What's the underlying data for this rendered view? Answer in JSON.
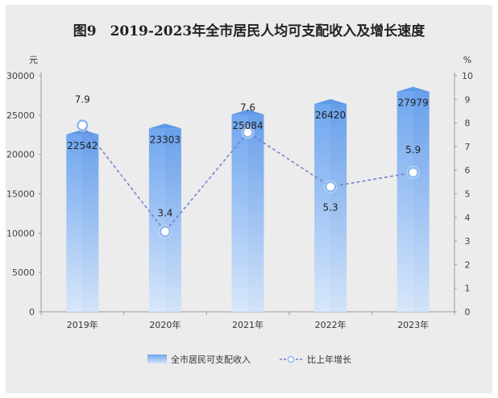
{
  "chart_data": {
    "type": "bar",
    "title": "图9　2019-2023年全市居民人均可支配收入及增长速度",
    "left_unit": "元",
    "right_unit": "%",
    "categories": [
      "2019年",
      "2020年",
      "2021年",
      "2022年",
      "2023年"
    ],
    "series": [
      {
        "name": "全市居民可支配收入",
        "type": "bar",
        "axis": "left",
        "values": [
          22542,
          23303,
          25084,
          26420,
          27979
        ],
        "color": "#7aaef0"
      },
      {
        "name": "比上年增长",
        "type": "line",
        "axis": "right",
        "values": [
          7.9,
          3.4,
          7.6,
          5.3,
          5.9
        ],
        "color": "#6f7fcf"
      }
    ],
    "left_axis": {
      "min": 0,
      "max": 30000,
      "ticks": [
        "0",
        "5000",
        "10000",
        "15000",
        "20000",
        "25000",
        "30000"
      ]
    },
    "right_axis": {
      "min": 0,
      "max": 10,
      "ticks": [
        "0",
        "1",
        "2",
        "3",
        "4",
        "5",
        "6",
        "7",
        "8",
        "9",
        "10"
      ]
    },
    "grid": false,
    "legend_position": "bottom"
  }
}
